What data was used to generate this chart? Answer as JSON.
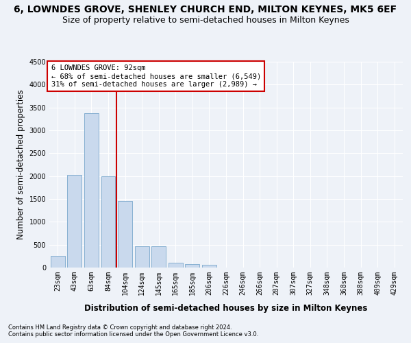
{
  "title": "6, LOWNDES GROVE, SHENLEY CHURCH END, MILTON KEYNES, MK5 6EF",
  "subtitle": "Size of property relative to semi-detached houses in Milton Keynes",
  "xlabel": "Distribution of semi-detached houses by size in Milton Keynes",
  "ylabel": "Number of semi-detached properties",
  "footnote1": "Contains HM Land Registry data © Crown copyright and database right 2024.",
  "footnote2": "Contains public sector information licensed under the Open Government Licence v3.0.",
  "categories": [
    "23sqm",
    "43sqm",
    "63sqm",
    "84sqm",
    "104sqm",
    "124sqm",
    "145sqm",
    "165sqm",
    "185sqm",
    "206sqm",
    "226sqm",
    "246sqm",
    "266sqm",
    "287sqm",
    "307sqm",
    "327sqm",
    "348sqm",
    "368sqm",
    "388sqm",
    "409sqm",
    "429sqm"
  ],
  "values": [
    250,
    2020,
    3380,
    2000,
    1450,
    460,
    460,
    110,
    80,
    60,
    0,
    0,
    0,
    0,
    0,
    0,
    0,
    0,
    0,
    0,
    0
  ],
  "bar_color": "#c9d9ed",
  "bar_edge_color": "#7aa8cc",
  "ylim": [
    0,
    4500
  ],
  "yticks": [
    0,
    500,
    1000,
    1500,
    2000,
    2500,
    3000,
    3500,
    4000,
    4500
  ],
  "property_line_x": 3.5,
  "property_line_color": "#cc0000",
  "annotation_text_line1": "6 LOWNDES GROVE: 92sqm",
  "annotation_text_line2": "← 68% of semi-detached houses are smaller (6,549)",
  "annotation_text_line3": "31% of semi-detached houses are larger (2,989) →",
  "annotation_box_color": "#ffffff",
  "annotation_box_edge_color": "#cc0000",
  "bg_color": "#eef2f8",
  "grid_color": "#ffffff",
  "title_fontsize": 10,
  "subtitle_fontsize": 9,
  "axis_label_fontsize": 8.5,
  "tick_fontsize": 7,
  "annotation_fontsize": 7.5,
  "footnote_fontsize": 6
}
